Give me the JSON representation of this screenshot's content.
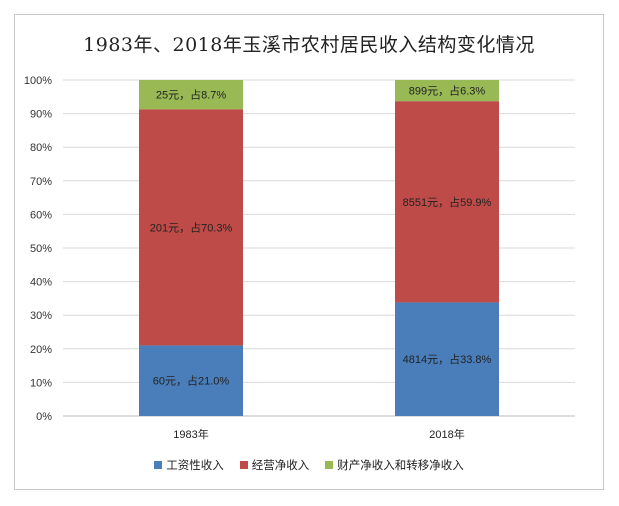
{
  "chart_data": {
    "type": "bar",
    "stacked": true,
    "title": "1983年、2018年玉溪市农村居民收入结构变化情况",
    "categories": [
      "1983年",
      "2018年"
    ],
    "ylim": [
      0,
      100
    ],
    "yticks": [
      "0%",
      "10%",
      "20%",
      "30%",
      "40%",
      "50%",
      "60%",
      "70%",
      "80%",
      "90%",
      "100%"
    ],
    "grid": true,
    "legend_position": "bottom",
    "series": [
      {
        "name": "工资性收入",
        "color": "#4a7ebb",
        "values": [
          21.0,
          33.8
        ],
        "labels": [
          "60元，占21.0%",
          "4814元，占33.8%"
        ]
      },
      {
        "name": "经营净收入",
        "color": "#be4b48",
        "values": [
          70.3,
          59.9
        ],
        "labels": [
          "201元，占70.3%",
          "8551元，占59.9%"
        ]
      },
      {
        "name": "财产净收入和转移净收入",
        "color": "#98b954",
        "values": [
          8.7,
          6.3
        ],
        "labels": [
          "25元，占8.7%",
          "899元，占6.3%"
        ]
      }
    ]
  }
}
